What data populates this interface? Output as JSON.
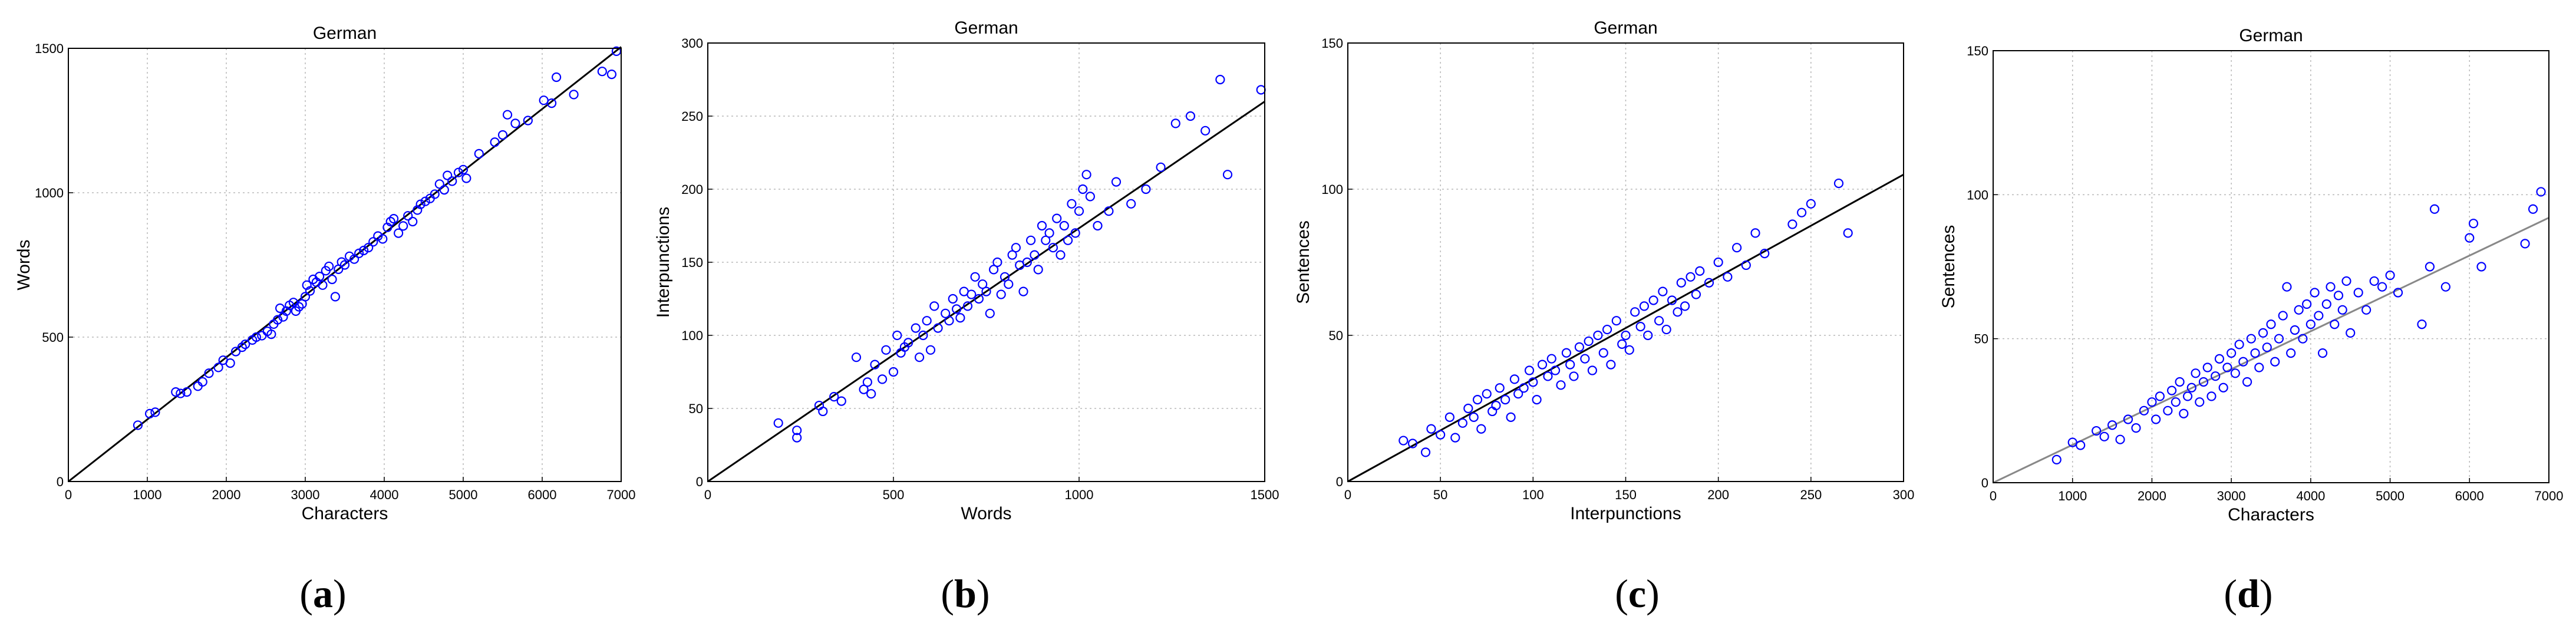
{
  "chart_data": [
    {
      "type": "scatter",
      "title": "German",
      "xlabel": "Characters",
      "ylabel": "Words",
      "xlim": [
        0,
        7000
      ],
      "ylim": [
        0,
        1500
      ],
      "xticks": [
        "0",
        "1000",
        "2000",
        "3000",
        "4000",
        "5000",
        "6000",
        "7000"
      ],
      "yticks": [
        "0",
        "500",
        "1000",
        "1500"
      ],
      "grid": true,
      "marker_color": "#0000ff",
      "fit_color": "#000000",
      "fit_line": {
        "x": [
          0,
          7000
        ],
        "y": [
          0,
          1505
        ]
      },
      "caption": "a",
      "points": [
        [
          880,
          195
        ],
        [
          1030,
          235
        ],
        [
          1100,
          240
        ],
        [
          1360,
          310
        ],
        [
          1420,
          305
        ],
        [
          1500,
          310
        ],
        [
          1640,
          330
        ],
        [
          1700,
          345
        ],
        [
          1780,
          375
        ],
        [
          1900,
          395
        ],
        [
          1960,
          420
        ],
        [
          2050,
          410
        ],
        [
          2120,
          450
        ],
        [
          2200,
          465
        ],
        [
          2240,
          475
        ],
        [
          2330,
          490
        ],
        [
          2380,
          500
        ],
        [
          2450,
          505
        ],
        [
          2520,
          520
        ],
        [
          2570,
          510
        ],
        [
          2600,
          545
        ],
        [
          2650,
          560
        ],
        [
          2680,
          600
        ],
        [
          2720,
          570
        ],
        [
          2760,
          590
        ],
        [
          2800,
          610
        ],
        [
          2850,
          620
        ],
        [
          2880,
          590
        ],
        [
          2920,
          605
        ],
        [
          2960,
          615
        ],
        [
          3000,
          640
        ],
        [
          3020,
          680
        ],
        [
          3060,
          660
        ],
        [
          3100,
          700
        ],
        [
          3140,
          690
        ],
        [
          3180,
          710
        ],
        [
          3220,
          680
        ],
        [
          3260,
          730
        ],
        [
          3300,
          745
        ],
        [
          3340,
          700
        ],
        [
          3380,
          640
        ],
        [
          3420,
          735
        ],
        [
          3460,
          760
        ],
        [
          3500,
          750
        ],
        [
          3560,
          780
        ],
        [
          3620,
          770
        ],
        [
          3680,
          790
        ],
        [
          3740,
          800
        ],
        [
          3800,
          810
        ],
        [
          3860,
          830
        ],
        [
          3920,
          850
        ],
        [
          3980,
          840
        ],
        [
          4040,
          880
        ],
        [
          4080,
          900
        ],
        [
          4120,
          910
        ],
        [
          4180,
          860
        ],
        [
          4240,
          885
        ],
        [
          4300,
          920
        ],
        [
          4360,
          900
        ],
        [
          4420,
          940
        ],
        [
          4460,
          960
        ],
        [
          4520,
          970
        ],
        [
          4580,
          980
        ],
        [
          4640,
          995
        ],
        [
          4700,
          1030
        ],
        [
          4760,
          1010
        ],
        [
          4800,
          1060
        ],
        [
          4860,
          1040
        ],
        [
          4940,
          1070
        ],
        [
          5000,
          1080
        ],
        [
          5040,
          1050
        ],
        [
          5200,
          1135
        ],
        [
          5400,
          1175
        ],
        [
          5500,
          1200
        ],
        [
          5560,
          1270
        ],
        [
          5660,
          1240
        ],
        [
          5820,
          1250
        ],
        [
          6020,
          1320
        ],
        [
          6120,
          1310
        ],
        [
          6180,
          1400
        ],
        [
          6400,
          1340
        ],
        [
          6760,
          1420
        ],
        [
          6880,
          1410
        ],
        [
          6940,
          1490
        ]
      ]
    },
    {
      "type": "scatter",
      "title": "German",
      "xlabel": "Words",
      "ylabel": "Interpunctions",
      "xlim": [
        0,
        1500
      ],
      "ylim": [
        0,
        300
      ],
      "xticks": [
        "0",
        "500",
        "1000",
        "1500"
      ],
      "yticks": [
        "0",
        "50",
        "100",
        "150",
        "200",
        "250",
        "300"
      ],
      "grid": true,
      "marker_color": "#0000ff",
      "fit_color": "#000000",
      "fit_line": {
        "x": [
          0,
          1500
        ],
        "y": [
          0,
          260
        ]
      },
      "caption": "b",
      "points": [
        [
          190,
          40
        ],
        [
          240,
          35
        ],
        [
          240,
          30
        ],
        [
          300,
          52
        ],
        [
          310,
          48
        ],
        [
          340,
          58
        ],
        [
          360,
          55
        ],
        [
          400,
          85
        ],
        [
          420,
          63
        ],
        [
          430,
          68
        ],
        [
          440,
          60
        ],
        [
          450,
          80
        ],
        [
          470,
          70
        ],
        [
          480,
          90
        ],
        [
          500,
          75
        ],
        [
          510,
          100
        ],
        [
          520,
          88
        ],
        [
          530,
          92
        ],
        [
          540,
          95
        ],
        [
          560,
          105
        ],
        [
          570,
          85
        ],
        [
          580,
          100
        ],
        [
          590,
          110
        ],
        [
          600,
          90
        ],
        [
          610,
          120
        ],
        [
          620,
          105
        ],
        [
          640,
          115
        ],
        [
          650,
          110
        ],
        [
          660,
          125
        ],
        [
          670,
          118
        ],
        [
          680,
          112
        ],
        [
          690,
          130
        ],
        [
          700,
          120
        ],
        [
          710,
          128
        ],
        [
          720,
          140
        ],
        [
          730,
          125
        ],
        [
          740,
          135
        ],
        [
          750,
          130
        ],
        [
          760,
          115
        ],
        [
          770,
          145
        ],
        [
          780,
          150
        ],
        [
          790,
          128
        ],
        [
          800,
          140
        ],
        [
          810,
          135
        ],
        [
          820,
          155
        ],
        [
          830,
          160
        ],
        [
          840,
          148
        ],
        [
          850,
          130
        ],
        [
          860,
          150
        ],
        [
          870,
          165
        ],
        [
          880,
          155
        ],
        [
          890,
          145
        ],
        [
          900,
          175
        ],
        [
          910,
          165
        ],
        [
          920,
          170
        ],
        [
          930,
          160
        ],
        [
          940,
          180
        ],
        [
          950,
          155
        ],
        [
          960,
          175
        ],
        [
          970,
          165
        ],
        [
          980,
          190
        ],
        [
          990,
          170
        ],
        [
          1000,
          185
        ],
        [
          1010,
          200
        ],
        [
          1020,
          210
        ],
        [
          1030,
          195
        ],
        [
          1050,
          175
        ],
        [
          1080,
          185
        ],
        [
          1100,
          205
        ],
        [
          1140,
          190
        ],
        [
          1180,
          200
        ],
        [
          1220,
          215
        ],
        [
          1260,
          245
        ],
        [
          1300,
          250
        ],
        [
          1340,
          240
        ],
        [
          1380,
          275
        ],
        [
          1400,
          210
        ],
        [
          1490,
          268
        ]
      ]
    },
    {
      "type": "scatter",
      "title": "German",
      "xlabel": "Interpunctions",
      "ylabel": "Sentences",
      "xlim": [
        0,
        300
      ],
      "ylim": [
        0,
        150
      ],
      "xticks": [
        "0",
        "50",
        "100",
        "150",
        "200",
        "250",
        "300"
      ],
      "yticks": [
        "0",
        "50",
        "100",
        "150"
      ],
      "grid": true,
      "marker_color": "#0000ff",
      "fit_color": "#000000",
      "fit_line": {
        "x": [
          0,
          300
        ],
        "y": [
          0,
          105
        ]
      },
      "caption": "c",
      "points": [
        [
          30,
          14
        ],
        [
          35,
          13
        ],
        [
          42,
          10
        ],
        [
          45,
          18
        ],
        [
          50,
          16
        ],
        [
          55,
          22
        ],
        [
          58,
          15
        ],
        [
          62,
          20
        ],
        [
          65,
          25
        ],
        [
          68,
          22
        ],
        [
          70,
          28
        ],
        [
          72,
          18
        ],
        [
          75,
          30
        ],
        [
          78,
          24
        ],
        [
          80,
          26
        ],
        [
          82,
          32
        ],
        [
          85,
          28
        ],
        [
          88,
          22
        ],
        [
          90,
          35
        ],
        [
          92,
          30
        ],
        [
          95,
          32
        ],
        [
          98,
          38
        ],
        [
          100,
          34
        ],
        [
          102,
          28
        ],
        [
          105,
          40
        ],
        [
          108,
          36
        ],
        [
          110,
          42
        ],
        [
          112,
          38
        ],
        [
          115,
          33
        ],
        [
          118,
          44
        ],
        [
          120,
          40
        ],
        [
          122,
          36
        ],
        [
          125,
          46
        ],
        [
          128,
          42
        ],
        [
          130,
          48
        ],
        [
          132,
          38
        ],
        [
          135,
          50
        ],
        [
          138,
          44
        ],
        [
          140,
          52
        ],
        [
          142,
          40
        ],
        [
          145,
          55
        ],
        [
          148,
          47
        ],
        [
          150,
          50
        ],
        [
          152,
          45
        ],
        [
          155,
          58
        ],
        [
          158,
          53
        ],
        [
          160,
          60
        ],
        [
          162,
          50
        ],
        [
          165,
          62
        ],
        [
          168,
          55
        ],
        [
          170,
          65
        ],
        [
          172,
          52
        ],
        [
          175,
          62
        ],
        [
          178,
          58
        ],
        [
          180,
          68
        ],
        [
          182,
          60
        ],
        [
          185,
          70
        ],
        [
          188,
          64
        ],
        [
          190,
          72
        ],
        [
          195,
          68
        ],
        [
          200,
          75
        ],
        [
          205,
          70
        ],
        [
          210,
          80
        ],
        [
          215,
          74
        ],
        [
          220,
          85
        ],
        [
          225,
          78
        ],
        [
          240,
          88
        ],
        [
          245,
          92
        ],
        [
          250,
          95
        ],
        [
          265,
          102
        ],
        [
          270,
          85
        ]
      ]
    },
    {
      "type": "scatter",
      "title": "German",
      "xlabel": "Characters",
      "ylabel": "Sentences",
      "xlim": [
        0,
        7000
      ],
      "ylim": [
        0,
        150
      ],
      "xticks": [
        "0",
        "1000",
        "2000",
        "3000",
        "4000",
        "5000",
        "6000",
        "7000"
      ],
      "yticks": [
        "0",
        "50",
        "100",
        "150"
      ],
      "grid": true,
      "marker_color": "#0000ff",
      "fit_color": "#888888",
      "fit_line": {
        "x": [
          0,
          7000
        ],
        "y": [
          0,
          92
        ]
      },
      "caption": "d",
      "points": [
        [
          800,
          8
        ],
        [
          1000,
          14
        ],
        [
          1100,
          13
        ],
        [
          1300,
          18
        ],
        [
          1400,
          16
        ],
        [
          1500,
          20
        ],
        [
          1600,
          15
        ],
        [
          1700,
          22
        ],
        [
          1800,
          19
        ],
        [
          1900,
          25
        ],
        [
          2000,
          28
        ],
        [
          2050,
          22
        ],
        [
          2100,
          30
        ],
        [
          2200,
          25
        ],
        [
          2250,
          32
        ],
        [
          2300,
          28
        ],
        [
          2350,
          35
        ],
        [
          2400,
          24
        ],
        [
          2450,
          30
        ],
        [
          2500,
          33
        ],
        [
          2550,
          38
        ],
        [
          2600,
          28
        ],
        [
          2650,
          35
        ],
        [
          2700,
          40
        ],
        [
          2750,
          30
        ],
        [
          2800,
          37
        ],
        [
          2850,
          43
        ],
        [
          2900,
          33
        ],
        [
          2950,
          40
        ],
        [
          3000,
          45
        ],
        [
          3050,
          38
        ],
        [
          3100,
          48
        ],
        [
          3150,
          42
        ],
        [
          3200,
          35
        ],
        [
          3250,
          50
        ],
        [
          3300,
          45
        ],
        [
          3350,
          40
        ],
        [
          3400,
          52
        ],
        [
          3450,
          47
        ],
        [
          3500,
          55
        ],
        [
          3550,
          42
        ],
        [
          3600,
          50
        ],
        [
          3650,
          58
        ],
        [
          3700,
          68
        ],
        [
          3750,
          45
        ],
        [
          3800,
          53
        ],
        [
          3850,
          60
        ],
        [
          3900,
          50
        ],
        [
          3950,
          62
        ],
        [
          4000,
          55
        ],
        [
          4050,
          66
        ],
        [
          4100,
          58
        ],
        [
          4150,
          45
        ],
        [
          4200,
          62
        ],
        [
          4250,
          68
        ],
        [
          4300,
          55
        ],
        [
          4350,
          65
        ],
        [
          4400,
          60
        ],
        [
          4450,
          70
        ],
        [
          4500,
          52
        ],
        [
          4600,
          66
        ],
        [
          4700,
          60
        ],
        [
          4800,
          70
        ],
        [
          4900,
          68
        ],
        [
          5000,
          72
        ],
        [
          5100,
          66
        ],
        [
          5400,
          55
        ],
        [
          5500,
          75
        ],
        [
          5560,
          95
        ],
        [
          5700,
          68
        ],
        [
          6000,
          85
        ],
        [
          6050,
          90
        ],
        [
          6150,
          75
        ],
        [
          6700,
          83
        ],
        [
          6800,
          95
        ],
        [
          6900,
          101
        ]
      ]
    }
  ]
}
